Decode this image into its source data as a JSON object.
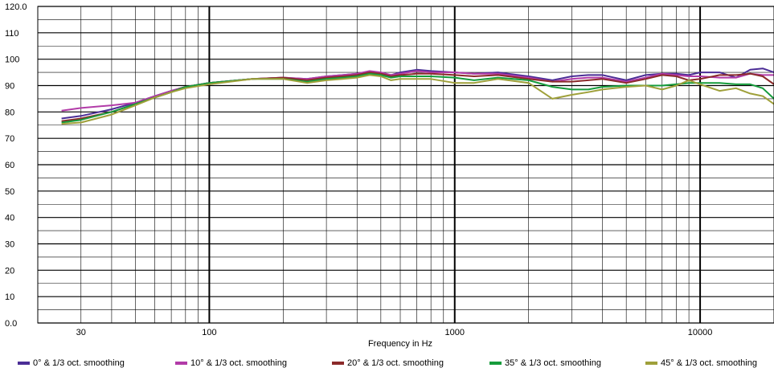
{
  "chart_data": {
    "type": "line",
    "title": "",
    "xlabel": "Frequency in Hz",
    "ylabel": "",
    "x_scale": "log",
    "xlim": [
      20,
      20000
    ],
    "ylim": [
      0,
      120
    ],
    "grid": true,
    "legend_position": "bottom",
    "y_ticks": [
      "0.0",
      "10",
      "20",
      "30",
      "40",
      "50",
      "60",
      "70",
      "80",
      "90",
      "100",
      "110",
      "120.0"
    ],
    "x_tick_values": [
      30,
      100,
      1000,
      10000
    ],
    "x_tick_labels": [
      "30",
      "100",
      "1000",
      "10000"
    ],
    "x": [
      25,
      30,
      40,
      50,
      60,
      70,
      80,
      100,
      150,
      200,
      250,
      300,
      350,
      400,
      450,
      500,
      550,
      600,
      700,
      800,
      1000,
      1200,
      1500,
      2000,
      2500,
      3000,
      3500,
      4000,
      5000,
      6000,
      7000,
      8000,
      9000,
      10000,
      12000,
      14000,
      16000,
      18000,
      20000
    ],
    "series": [
      {
        "name": "0° & 1/3 oct. smoothing",
        "color": "#4b2d96",
        "values": [
          77.5,
          78.5,
          81,
          83.5,
          86,
          88,
          89.5,
          91,
          92.5,
          93,
          92.5,
          93.5,
          94,
          94.5,
          95,
          94.5,
          94,
          95,
          96,
          95.5,
          95,
          94.5,
          95,
          93.5,
          92,
          93.5,
          94,
          94,
          92,
          94,
          94.5,
          94.5,
          94,
          95,
          95,
          93,
          96,
          96.5,
          95
        ]
      },
      {
        "name": "10° & 1/3 oct. smoothing",
        "color": "#b23ba8",
        "values": [
          80.5,
          81.5,
          82.5,
          83.5,
          86,
          88,
          89.5,
          91,
          92.5,
          93,
          92.5,
          93.5,
          94,
          94.5,
          95.5,
          95,
          94,
          94.5,
          95.5,
          95,
          95,
          94.5,
          94.5,
          93,
          91.5,
          92.5,
          93,
          93,
          91.5,
          93,
          94.5,
          94,
          93.5,
          93.5,
          93,
          93,
          94.5,
          94,
          94
        ]
      },
      {
        "name": "20° & 1/3 oct. smoothing",
        "color": "#8b2a2a",
        "values": [
          76.5,
          77.5,
          80,
          83,
          85.5,
          87.5,
          89.5,
          91,
          92.5,
          93,
          92,
          93,
          93.5,
          94,
          95,
          94.5,
          93.5,
          94,
          94.5,
          94.5,
          94,
          93.5,
          94,
          92.5,
          91.5,
          91.5,
          92,
          92.5,
          91,
          92.5,
          94,
          93.5,
          92,
          92.5,
          94,
          94,
          94.5,
          93.5,
          90.5
        ]
      },
      {
        "name": "35° & 1/3 oct. smoothing",
        "color": "#169c3c",
        "values": [
          76,
          77,
          80,
          83,
          85.5,
          87.5,
          89.5,
          91,
          92.5,
          92.5,
          91.5,
          92.5,
          93,
          93.5,
          94.5,
          94,
          93,
          93.5,
          93.5,
          93.5,
          93,
          92,
          93,
          92,
          89.5,
          88.5,
          88.5,
          89.5,
          90,
          90,
          90,
          90.5,
          91,
          91,
          91,
          90.5,
          90.5,
          89,
          85
        ]
      },
      {
        "name": "45° & 1/3 oct. smoothing",
        "color": "#9fa03a",
        "values": [
          75.5,
          76,
          79,
          82.5,
          85.5,
          87.5,
          89,
          90.5,
          92.5,
          92.5,
          91,
          92,
          92.5,
          93,
          94,
          93.5,
          92,
          92.5,
          92.5,
          92.5,
          91,
          91,
          92.5,
          91,
          85,
          86.5,
          87.5,
          88.5,
          89.5,
          90,
          88.5,
          90,
          92,
          90.5,
          88,
          89,
          87,
          86,
          83
        ]
      }
    ]
  }
}
